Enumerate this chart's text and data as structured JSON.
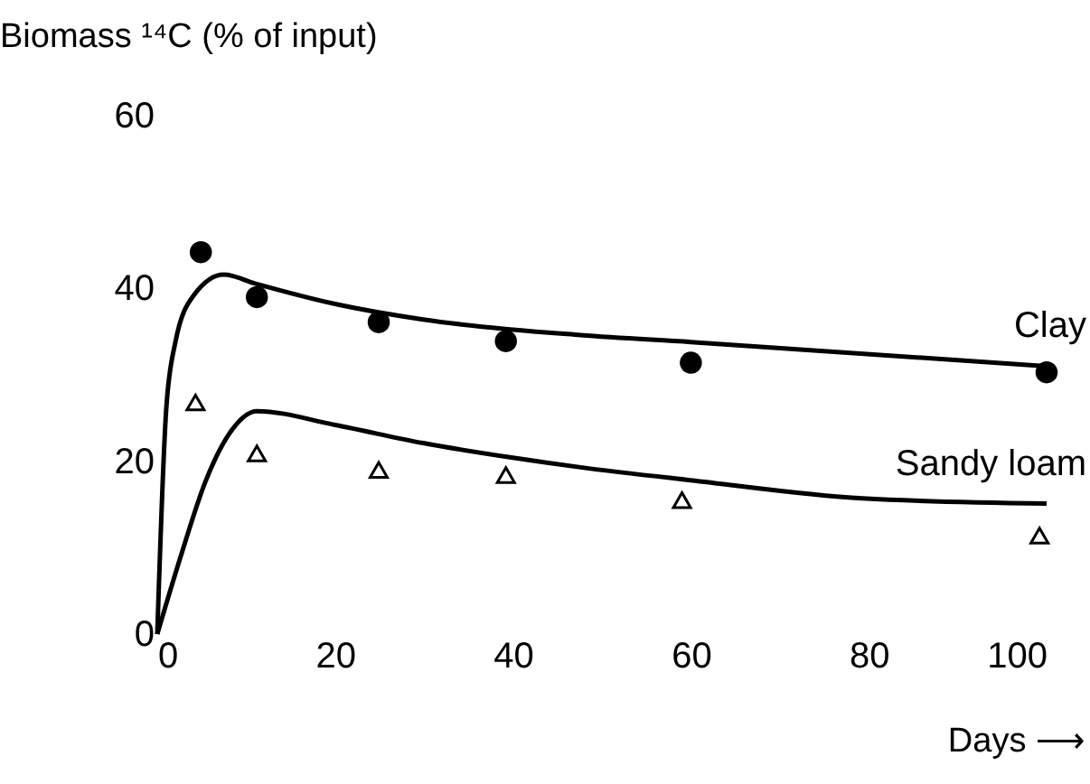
{
  "chart_data": {
    "type": "scatter",
    "ylabel": "Biomass ¹⁴C (% of input)",
    "xlabel": "Days ⟶",
    "xlim": [
      0,
      100
    ],
    "xticks": [
      0,
      20,
      40,
      60,
      80,
      100
    ],
    "ylim": [
      0,
      60
    ],
    "yticks": [
      0,
      20,
      40,
      60
    ],
    "grid": false,
    "series": [
      {
        "marker": "circle",
        "color": "#000000",
        "x": [
          4.9,
          11.2,
          24.9,
          39.2,
          60,
          100
        ],
        "values": [
          44.2,
          39.0,
          36.1,
          33.9,
          31.4,
          30.3
        ]
      },
      {
        "type": "line",
        "name": "Clay",
        "color": "#000000",
        "line_style": "solid",
        "x": [
          0,
          1,
          2,
          4.1,
          7.5,
          10.9,
          20,
          29.9,
          47.6,
          60,
          100
        ],
        "values": [
          0,
          25.9,
          33.6,
          39.2,
          41.6,
          40.6,
          38.2,
          36.4,
          34.6,
          33.8,
          31.0
        ]
      },
      {
        "marker": "triangle",
        "color": "#000000",
        "x": [
          4.3,
          11.2,
          24.9,
          39.2,
          59,
          99.2
        ],
        "values": [
          26.8,
          20.9,
          19.0,
          18.4,
          15.5,
          11.4
        ]
      },
      {
        "type": "line",
        "name": "Sandy loam",
        "color": "#000000",
        "line_style": "solid",
        "x": [
          0,
          2.7,
          5.4,
          8.1,
          11.2,
          20,
          29.9,
          40,
          47.6,
          60,
          79.3,
          100
        ],
        "values": [
          0,
          9.2,
          17.6,
          23.2,
          25.8,
          24.2,
          22.1,
          20.4,
          19.3,
          17.8,
          15.7,
          15.1
        ]
      }
    ]
  }
}
